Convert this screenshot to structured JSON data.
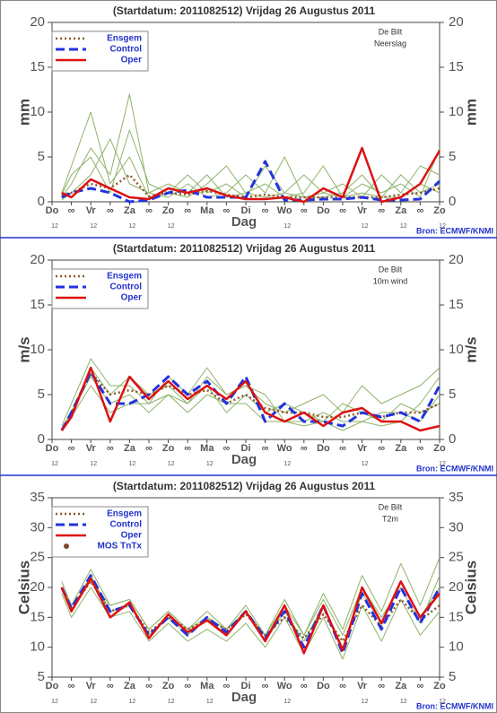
{
  "chart_data": [
    {
      "type": "line",
      "title": "(Startdatum: 2011082512)   Vrijdag   26 Augustus  2011",
      "station": "De Bilt",
      "variable": "Neerslag",
      "ylabel": "mm",
      "xlabel": "Dag",
      "source": "Bron: ECMWF/KNMI",
      "categories": [
        "Do",
        "∞",
        "Vr",
        "∞",
        "Za",
        "∞",
        "Zo",
        "∞",
        "Ma",
        "∞",
        "Di",
        "∞",
        "Wo",
        "∞",
        "Do",
        "∞",
        "Vr",
        "∞",
        "Za",
        "∞",
        "Zo"
      ],
      "hour_labels": [
        "12",
        null,
        "12",
        null,
        "12",
        null,
        "12",
        null,
        null,
        null,
        null,
        null,
        "12",
        null,
        null,
        null,
        "12",
        null,
        "12",
        null,
        "12"
      ],
      "xlim": [
        0,
        20
      ],
      "ylim": [
        0,
        20
      ],
      "yticks": [
        0,
        5,
        10,
        15,
        20
      ],
      "x": [
        0.5,
        1,
        2,
        3,
        4,
        5,
        6,
        7,
        8,
        9,
        10,
        11,
        12,
        13,
        14,
        15,
        16,
        17,
        18,
        19,
        20
      ],
      "series": [
        {
          "color": "#8db36a",
          "dash": "solid",
          "values": [
            0.5,
            2,
            6,
            3,
            12,
            1,
            2,
            1,
            3,
            0.5,
            1,
            2,
            0.5,
            1,
            4,
            0.5,
            1,
            0.5,
            3,
            1,
            2
          ]
        },
        {
          "color": "#8db36a",
          "dash": "solid",
          "values": [
            1,
            4,
            10,
            2,
            5,
            0.5,
            1,
            3,
            1,
            2,
            0.5,
            4,
            1,
            0.5,
            1,
            2,
            0.5,
            3,
            1,
            4,
            3
          ]
        },
        {
          "color": "#8db36a",
          "dash": "solid",
          "values": [
            0.2,
            1,
            3,
            7,
            2,
            1,
            0.5,
            2,
            0.5,
            1,
            3,
            1,
            5,
            0.5,
            0.5,
            1,
            3,
            0.5,
            0.5,
            2,
            1
          ]
        },
        {
          "color": "#8db36a",
          "dash": "solid",
          "values": [
            0.8,
            3,
            5,
            1,
            8,
            2,
            1,
            0.5,
            2,
            4,
            1,
            0.5,
            1,
            3,
            1,
            0.5,
            2,
            1,
            2,
            0.5,
            6
          ]
        },
        {
          "name": "Ensgem",
          "color": "#8b5a2b",
          "dash": "dotted",
          "values": [
            0.8,
            1,
            2,
            1.5,
            3,
            0.6,
            1,
            0.8,
            1.2,
            0.8,
            0.5,
            0.8,
            0.5,
            0.5,
            0.5,
            0.5,
            0.5,
            0.5,
            0.8,
            1,
            1.5
          ]
        },
        {
          "name": "Control",
          "color": "#2233dd",
          "dash": "dashed",
          "values": [
            0.5,
            1,
            1.5,
            1,
            0,
            0.2,
            1,
            1.3,
            0.5,
            0.5,
            0.5,
            4.5,
            0.2,
            0.2,
            0.3,
            0.3,
            0.5,
            0.2,
            0.2,
            0.3,
            2.3
          ]
        },
        {
          "name": "Oper",
          "color": "#dd1111",
          "dash": "solid",
          "values": [
            1,
            0.5,
            2.5,
            1.5,
            0.5,
            0.3,
            1.5,
            1,
            1.5,
            0.7,
            0.3,
            0.3,
            0.5,
            0,
            1.5,
            0.5,
            6,
            0,
            0.5,
            2,
            5.7
          ]
        }
      ]
    },
    {
      "type": "line",
      "title": "(Startdatum: 2011082512)   Vrijdag   26 Augustus  2011",
      "station": "De Bilt",
      "variable": "10m wind",
      "ylabel": "m/s",
      "xlabel": "Dag",
      "source": "Bron: ECMWF/KNMI",
      "categories": [
        "Do",
        "∞",
        "Vr",
        "∞",
        "Za",
        "∞",
        "Zo",
        "∞",
        "Ma",
        "∞",
        "Di",
        "∞",
        "Wo",
        "∞",
        "Do",
        "∞",
        "Vr",
        "∞",
        "Za",
        "∞",
        "Zo"
      ],
      "hour_labels": [
        "12",
        null,
        "12",
        null,
        "12",
        null,
        "12",
        null,
        "12",
        null,
        null,
        null,
        "12",
        null,
        null,
        null,
        "12",
        null,
        null,
        null,
        "12"
      ],
      "xlim": [
        0,
        20
      ],
      "ylim": [
        0,
        20
      ],
      "yticks": [
        0,
        5,
        10,
        15,
        20
      ],
      "x": [
        0.5,
        1,
        2,
        3,
        4,
        5,
        6,
        7,
        8,
        9,
        10,
        11,
        12,
        13,
        14,
        15,
        16,
        17,
        18,
        19,
        20
      ],
      "series": [
        {
          "color": "#8db36a",
          "dash": "solid",
          "values": [
            1.5,
            4,
            9,
            6,
            6,
            4,
            7,
            5,
            8,
            5,
            6,
            4,
            3,
            4,
            5,
            3,
            6,
            4,
            5,
            6,
            8
          ]
        },
        {
          "color": "#8db36a",
          "dash": "solid",
          "values": [
            1,
            3,
            7,
            4,
            5,
            3,
            5,
            3,
            5,
            4,
            4,
            2,
            2,
            2,
            3,
            2,
            2,
            3,
            3,
            2,
            5
          ]
        },
        {
          "color": "#8db36a",
          "dash": "solid",
          "values": [
            1.2,
            3,
            8,
            5,
            7,
            5,
            6,
            4,
            6,
            3,
            5,
            3,
            4,
            3,
            2,
            4,
            3,
            2,
            4,
            3,
            4
          ]
        },
        {
          "color": "#8db36a",
          "dash": "solid",
          "values": [
            1,
            2.5,
            6,
            3,
            4,
            4,
            5,
            4,
            7,
            5,
            6,
            5,
            2,
            1.5,
            2,
            1,
            2,
            1.5,
            2,
            4,
            7
          ]
        },
        {
          "name": "Ensgem",
          "color": "#8b5a2b",
          "dash": "dotted",
          "values": [
            1,
            3,
            7.5,
            5,
            5.5,
            5,
            6,
            5,
            5.5,
            4,
            5,
            3.5,
            3,
            3,
            2.5,
            2.5,
            3,
            2.5,
            3,
            3,
            4
          ]
        },
        {
          "name": "Control",
          "color": "#2233dd",
          "dash": "dashed",
          "values": [
            1,
            3,
            7.5,
            4,
            4,
            5,
            7,
            5,
            6.5,
            4,
            7,
            2,
            4,
            2,
            2,
            1.5,
            3,
            2.5,
            3,
            2,
            6
          ]
        },
        {
          "name": "Oper",
          "color": "#dd1111",
          "dash": "solid",
          "values": [
            1,
            2.5,
            8,
            2,
            7,
            4.5,
            6.5,
            4.5,
            6,
            4.5,
            6.5,
            3,
            2,
            3,
            1.5,
            3,
            3.5,
            2,
            2,
            1,
            1.5
          ]
        }
      ]
    },
    {
      "type": "line",
      "title": "(Startdatum: 2011082512)   Vrijdag   26 Augustus  2011",
      "station": "De Bilt",
      "variable": "T2m",
      "ylabel": "Celsius",
      "xlabel": "Dag",
      "source": "Bron: ECMWF/KNMI",
      "categories": [
        "Do",
        "∞",
        "Vr",
        "∞",
        "Za",
        "∞",
        "Zo",
        "∞",
        "Ma",
        "∞",
        "Di",
        "∞",
        "Wo",
        "∞",
        "Do",
        "∞",
        "Vr",
        "∞",
        "Za",
        "∞",
        "Zo"
      ],
      "hour_labels": [
        "12",
        null,
        "12",
        null,
        "12",
        null,
        "12",
        null,
        "12",
        null,
        null,
        null,
        "12",
        null,
        null,
        null,
        "12",
        null,
        "12",
        null,
        "12"
      ],
      "xlim": [
        0,
        20
      ],
      "ylim": [
        5,
        35
      ],
      "yticks": [
        5,
        10,
        15,
        20,
        25,
        30,
        35
      ],
      "x": [
        0.5,
        1,
        2,
        3,
        4,
        5,
        6,
        7,
        8,
        9,
        10,
        11,
        12,
        13,
        14,
        15,
        16,
        17,
        18,
        19,
        20
      ],
      "series": [
        {
          "color": "#8db36a",
          "dash": "solid",
          "values": [
            20,
            17,
            23,
            17,
            18,
            13,
            16,
            13,
            16,
            13,
            17,
            12,
            18,
            12,
            19,
            13,
            22,
            16,
            24,
            17,
            25
          ]
        },
        {
          "color": "#8db36a",
          "dash": "solid",
          "values": [
            19,
            15,
            20,
            15,
            16,
            11,
            14,
            11,
            13,
            11,
            14,
            10,
            15,
            9,
            15,
            8,
            17,
            11,
            18,
            12,
            16
          ]
        },
        {
          "color": "#8db36a",
          "dash": "solid",
          "values": [
            20,
            16,
            22,
            16,
            17,
            12,
            15,
            12,
            15,
            12,
            16,
            11,
            16,
            11,
            17,
            10,
            19,
            14,
            21,
            15,
            20
          ]
        },
        {
          "color": "#8db36a",
          "dash": "solid",
          "values": [
            21,
            17,
            21,
            17,
            18,
            13,
            16,
            13,
            15,
            13,
            16,
            12,
            17,
            12,
            18,
            12,
            20,
            15,
            20,
            14,
            22
          ]
        },
        {
          "name": "Ensgem",
          "color": "#8b5a2b",
          "dash": "dotted",
          "values": [
            20,
            16.5,
            21,
            16,
            17,
            12.5,
            15,
            13,
            14.5,
            13,
            15.5,
            12,
            15,
            11.5,
            15.5,
            11,
            17,
            13.5,
            18,
            14.5,
            17
          ]
        },
        {
          "name": "Control",
          "color": "#2233dd",
          "dash": "dashed",
          "values": [
            20,
            16.5,
            22,
            16,
            17,
            12,
            15,
            12,
            15,
            12.5,
            16,
            11.5,
            16,
            10,
            17,
            9,
            19,
            13,
            20,
            14,
            20
          ]
        },
        {
          "name": "Oper",
          "color": "#dd1111",
          "dash": "solid",
          "values": [
            20,
            16,
            21.5,
            15,
            17.5,
            11.5,
            15.5,
            12.5,
            14.5,
            12,
            16,
            11,
            17,
            9,
            17,
            9.5,
            20,
            14,
            21,
            15,
            19
          ]
        },
        {
          "name": "MOS TnTx",
          "color": "#7a4a2a",
          "dash": "marker",
          "values": [
            null,
            null,
            null,
            null,
            null,
            null,
            null,
            null,
            null,
            null,
            null,
            null,
            null,
            null,
            null,
            null,
            null,
            null,
            null,
            null,
            null
          ]
        }
      ]
    }
  ]
}
